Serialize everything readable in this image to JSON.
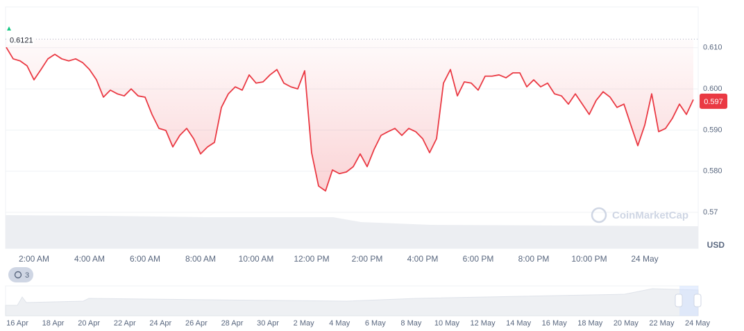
{
  "chart_data": {
    "type": "line",
    "categories": [
      null,
      null,
      null,
      null,
      "2:00 AM",
      null,
      null,
      null,
      null,
      null,
      null,
      null,
      "4:00 AM",
      null,
      null,
      null,
      null,
      null,
      null,
      null,
      "6:00 AM",
      null,
      null,
      null,
      null,
      null,
      null,
      null,
      "8:00 AM",
      null,
      null,
      null,
      null,
      null,
      null,
      null,
      "10:00 AM",
      null,
      null,
      null,
      null,
      null,
      null,
      null,
      "12:00 PM",
      null,
      null,
      null,
      null,
      null,
      null,
      null,
      "2:00 PM",
      null,
      null,
      null,
      null,
      null,
      null,
      null,
      "4:00 PM",
      null,
      null,
      null,
      null,
      null,
      null,
      null,
      "6:00 PM",
      null,
      null,
      null,
      null,
      null,
      null,
      null,
      "8:00 PM",
      null,
      null,
      null,
      null,
      null,
      null,
      null,
      "10:00 PM",
      null,
      null,
      null,
      null,
      null,
      null,
      null,
      "24 May",
      null,
      null,
      null,
      null,
      null,
      null,
      null
    ],
    "values": [
      0.6101,
      0.6073,
      0.6068,
      0.6056,
      0.6022,
      0.6047,
      0.6073,
      0.6084,
      0.6073,
      0.6068,
      0.6073,
      0.6064,
      0.6047,
      0.6022,
      0.598,
      0.5997,
      0.5988,
      0.5983,
      0.6,
      0.5983,
      0.598,
      0.5938,
      0.5904,
      0.5899,
      0.5859,
      0.5887,
      0.5904,
      0.5879,
      0.5842,
      0.5859,
      0.587,
      0.5955,
      0.5988,
      0.6005,
      0.5997,
      0.6034,
      0.6014,
      0.6017,
      0.6034,
      0.6047,
      0.6014,
      0.6005,
      0.6,
      0.6044,
      0.5845,
      0.5764,
      0.5752,
      0.5803,
      0.5794,
      0.5798,
      0.5811,
      0.5842,
      0.5811,
      0.5853,
      0.5887,
      0.5896,
      0.5904,
      0.5887,
      0.5904,
      0.5896,
      0.5879,
      0.5845,
      0.5879,
      0.6014,
      0.6047,
      0.5983,
      0.6017,
      0.6014,
      0.5997,
      0.6031,
      0.6031,
      0.6034,
      0.6027,
      0.6039,
      0.6039,
      0.6005,
      0.6022,
      0.6005,
      0.6014,
      0.5988,
      0.5983,
      0.5963,
      0.5988,
      0.5963,
      0.5938,
      0.5972,
      0.5993,
      0.598,
      0.5955,
      0.5963,
      0.5912,
      0.5862,
      0.5912,
      0.5988,
      0.5896,
      0.5904,
      0.5929,
      0.5963,
      0.5938,
      0.5974
    ],
    "color": "#ea3943",
    "ylim": [
      0.57,
      0.62
    ],
    "yticks": [
      {
        "value": 0.61,
        "label": "0.610"
      },
      {
        "value": 0.6,
        "label": "0.600"
      },
      {
        "value": 0.59,
        "label": "0.590"
      },
      {
        "value": 0.58,
        "label": "0.580"
      },
      0.57
    ],
    "grid": true,
    "open_price": 0.6121,
    "current_price": 0.597,
    "currency": "USD",
    "watermark": "CoinMarketCap",
    "badge": "3",
    "navigator_labels": [
      "16 Apr",
      "18 Apr",
      "20 Apr",
      "22 Apr",
      "24 Apr",
      "26 Apr",
      "28 Apr",
      "30 Apr",
      "2 May",
      "4 May",
      "6 May",
      "8 May",
      "10 May",
      "12 May",
      "14 May",
      "16 May",
      "18 May",
      "20 May",
      "22 May",
      "24 May"
    ]
  }
}
